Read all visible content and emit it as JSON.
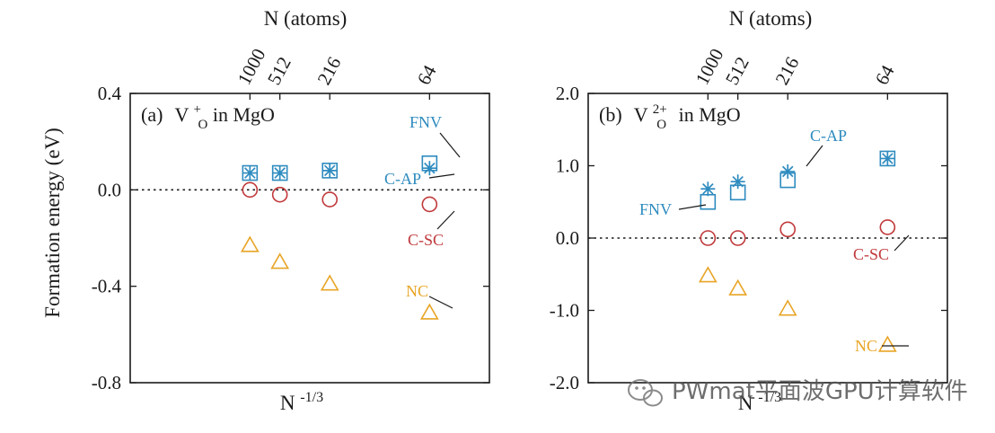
{
  "chart_data": [
    {
      "type": "scatter",
      "panel_label": "(a)",
      "title_main": "V",
      "title_sup": "+",
      "title_sub": "O",
      "title_rest": " in MgO",
      "ylabel": "Formation energy (eV)",
      "xlabel_main": "N",
      "xlabel_sup": "-1/3",
      "top_xlabel": "N (atoms)",
      "ylim": [
        -0.8,
        0.4
      ],
      "yticks": [
        {
          "v": 0.4,
          "label": "0.4"
        },
        {
          "v": 0.0,
          "label": "0.0"
        },
        {
          "v": -0.4,
          "label": "-0.4"
        },
        {
          "v": -0.8,
          "label": "-0.8"
        }
      ],
      "xlim": [
        0.0,
        0.3
      ],
      "top_ticks": [
        {
          "n": 1000,
          "label": "1000"
        },
        {
          "n": 512,
          "label": "512"
        },
        {
          "n": 216,
          "label": "216"
        },
        {
          "n": 64,
          "label": "64"
        }
      ],
      "series": [
        {
          "id": "FNV",
          "marker": "square",
          "color": "#2e8bbf",
          "points": [
            {
              "n": 1000,
              "y": 0.07
            },
            {
              "n": 512,
              "y": 0.07
            },
            {
              "n": 216,
              "y": 0.08
            },
            {
              "n": 64,
              "y": 0.11
            }
          ]
        },
        {
          "id": "C-AP",
          "marker": "asterisk",
          "color": "#2e8bbf",
          "points": [
            {
              "n": 1000,
              "y": 0.07
            },
            {
              "n": 512,
              "y": 0.07
            },
            {
              "n": 216,
              "y": 0.08
            },
            {
              "n": 64,
              "y": 0.09
            }
          ]
        },
        {
          "id": "C-SC",
          "marker": "circle",
          "color": "#c0393b",
          "points": [
            {
              "n": 1000,
              "y": 0.0
            },
            {
              "n": 512,
              "y": -0.02
            },
            {
              "n": 216,
              "y": -0.04
            },
            {
              "n": 64,
              "y": -0.06
            }
          ]
        },
        {
          "id": "NC",
          "marker": "triangle",
          "color": "#e8a526",
          "points": [
            {
              "n": 1000,
              "y": -0.23
            },
            {
              "n": 512,
              "y": -0.3
            },
            {
              "n": 216,
              "y": -0.39
            },
            {
              "n": 64,
              "y": -0.51
            }
          ]
        }
      ],
      "annotations": [
        {
          "text": "FNV",
          "color": "#2e8bbf"
        },
        {
          "text": "C-AP",
          "color": "#2e8bbf"
        },
        {
          "text": "C-SC",
          "color": "#c0393b"
        },
        {
          "text": "NC",
          "color": "#e8a526"
        }
      ]
    },
    {
      "type": "scatter",
      "panel_label": "(b)",
      "title_main": "V",
      "title_sup": "2+",
      "title_sub": "O",
      "title_rest": " in MgO",
      "xlabel_main": "N",
      "xlabel_sup": "-1/3",
      "top_xlabel": "N (atoms)",
      "ylim": [
        -2.0,
        2.0
      ],
      "yticks": [
        {
          "v": 2.0,
          "label": "2.0"
        },
        {
          "v": 1.0,
          "label": "1.0"
        },
        {
          "v": 0.0,
          "label": "0.0"
        },
        {
          "v": -1.0,
          "label": "-1.0"
        },
        {
          "v": -2.0,
          "label": "-2.0"
        }
      ],
      "xlim": [
        0.0,
        0.3
      ],
      "top_ticks": [
        {
          "n": 1000,
          "label": "1000"
        },
        {
          "n": 512,
          "label": "512"
        },
        {
          "n": 216,
          "label": "216"
        },
        {
          "n": 64,
          "label": "64"
        }
      ],
      "series": [
        {
          "id": "FNV",
          "marker": "square",
          "color": "#2e8bbf",
          "points": [
            {
              "n": 1000,
              "y": 0.5
            },
            {
              "n": 512,
              "y": 0.63
            },
            {
              "n": 216,
              "y": 0.8
            },
            {
              "n": 64,
              "y": 1.1
            }
          ]
        },
        {
          "id": "C-AP",
          "marker": "asterisk",
          "color": "#2e8bbf",
          "points": [
            {
              "n": 1000,
              "y": 0.68
            },
            {
              "n": 512,
              "y": 0.78
            },
            {
              "n": 216,
              "y": 0.92
            },
            {
              "n": 64,
              "y": 1.1
            }
          ]
        },
        {
          "id": "C-SC",
          "marker": "circle",
          "color": "#c0393b",
          "points": [
            {
              "n": 1000,
              "y": 0.0
            },
            {
              "n": 512,
              "y": 0.0
            },
            {
              "n": 216,
              "y": 0.12
            },
            {
              "n": 64,
              "y": 0.15
            }
          ]
        },
        {
          "id": "NC",
          "marker": "triangle",
          "color": "#e8a526",
          "points": [
            {
              "n": 1000,
              "y": -0.52
            },
            {
              "n": 512,
              "y": -0.7
            },
            {
              "n": 216,
              "y": -0.98
            },
            {
              "n": 64,
              "y": -1.48
            }
          ]
        }
      ],
      "annotations": [
        {
          "text": "C-AP",
          "color": "#2e8bbf"
        },
        {
          "text": "FNV",
          "color": "#2e8bbf"
        },
        {
          "text": "C-SC",
          "color": "#c0393b"
        },
        {
          "text": "NC",
          "color": "#e8a526"
        }
      ]
    }
  ],
  "watermark": {
    "text": "PWmat平面波GPU计算软件",
    "icon": "wechat-icon"
  }
}
